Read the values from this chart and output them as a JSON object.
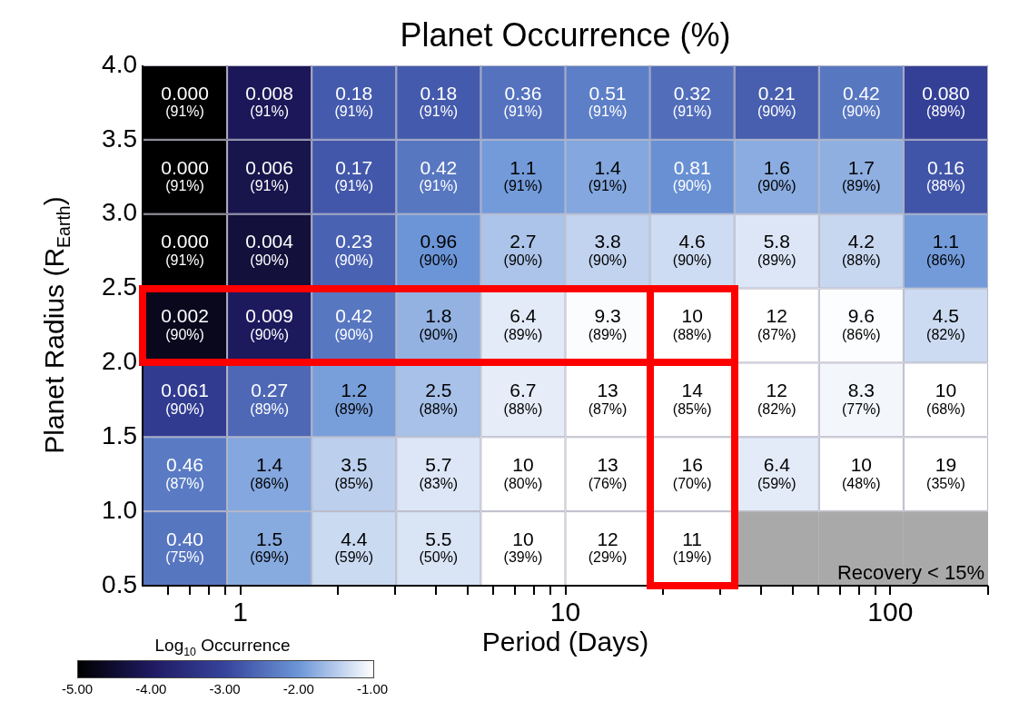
{
  "chart_data": {
    "type": "heatmap",
    "title": "Planet Occurrence (%)",
    "xlabel": "Period (Days)",
    "ylabel": "Planet Radius (R$_{Earth}$)",
    "clabel": "Log$_{10}$ Occurrence",
    "log": "x",
    "xlim": [
      0.5,
      200
    ],
    "xticks": [
      {
        "value": 0.6,
        "label": null
      },
      {
        "value": 0.7,
        "label": null
      },
      {
        "value": 0.8,
        "label": null
      },
      {
        "value": 0.9,
        "label": null
      },
      1,
      {
        "value": 2,
        "label": null
      },
      {
        "value": 3,
        "label": null
      },
      {
        "value": 4,
        "label": null
      },
      {
        "value": 5,
        "label": null
      },
      {
        "value": 6,
        "label": null
      },
      {
        "value": 7,
        "label": null
      },
      {
        "value": 8,
        "label": null
      },
      {
        "value": 9,
        "label": null
      },
      10,
      {
        "value": 20,
        "label": null
      },
      {
        "value": 30,
        "label": null
      },
      {
        "value": 40,
        "label": null
      },
      {
        "value": 50,
        "label": null
      },
      {
        "value": 60,
        "label": null
      },
      {
        "value": 70,
        "label": null
      },
      {
        "value": 80,
        "label": null
      },
      {
        "value": 90,
        "label": null
      },
      100,
      {
        "value": 200,
        "label": null
      }
    ],
    "ylim": [
      0.5,
      4.0
    ],
    "yticks": [
      0.5,
      {
        "value": 1,
        "label": "1.0"
      },
      1.5,
      {
        "value": 2,
        "label": "2.0"
      },
      2.5,
      {
        "value": 3,
        "label": "3.0"
      },
      3.5,
      {
        "value": 4,
        "label": "4.0"
      }
    ],
    "cells": [
      [
        -5,
        -4.1,
        -2.74,
        -2.74,
        -2.44,
        -2.29,
        -2.49,
        -2.68,
        -2.38,
        -3.1
      ],
      [
        -5,
        -4.22,
        -2.77,
        -2.38,
        -1.96,
        -1.85,
        -2.09,
        -1.8,
        -1.77,
        -2.8
      ],
      [
        -5,
        -4.4,
        -2.64,
        -2.02,
        -1.57,
        -1.42,
        -1.34,
        -1.24,
        -1.38,
        -1.96
      ],
      [
        -4.7,
        -4.05,
        -2.38,
        -1.74,
        -1.19,
        -1.03,
        -1,
        -1,
        -1.02,
        -1.35
      ],
      [
        -3.21,
        -2.57,
        -1.92,
        -1.6,
        -1.17,
        -1,
        -1,
        -1,
        -1.08,
        -1
      ],
      [
        -2.34,
        -1.85,
        -1.46,
        -1.24,
        -1,
        -1,
        -1,
        -1.19,
        -1,
        -1
      ],
      [
        -2.4,
        -1.82,
        -1.36,
        -1.26,
        -1,
        -1,
        -1,
        null,
        null,
        null
      ]
    ],
    "cell_labels": [
      [
        "0.000\n(91%)",
        "0.008\n(91%)",
        "0.18\n(91%)",
        "0.18\n(91%)",
        "0.36\n(91%)",
        "0.51\n(91%)",
        "0.32\n(91%)",
        "0.21\n(90%)",
        "0.42\n(90%)",
        "0.080\n(89%)"
      ],
      [
        "0.000\n(91%)",
        "0.006\n(91%)",
        "0.17\n(91%)",
        "0.42\n(91%)",
        "1.1\n(91%)",
        "1.4\n(91%)",
        "0.81\n(90%)",
        "1.6\n(90%)",
        "1.7\n(89%)",
        "0.16\n(88%)"
      ],
      [
        "0.000\n(91%)",
        "0.004\n(90%)",
        "0.23\n(90%)",
        "0.96\n(90%)",
        "2.7\n(90%)",
        "3.8\n(90%)",
        "4.6\n(90%)",
        "5.8\n(89%)",
        "4.2\n(88%)",
        "1.1\n(86%)"
      ],
      [
        "0.002\n(90%)",
        "0.009\n(90%)",
        "0.42\n(90%)",
        "1.8\n(90%)",
        "6.4\n(89%)",
        "9.3\n(89%)",
        "10\n(88%)",
        "12\n(87%)",
        "9.6\n(86%)",
        "4.5\n(82%)"
      ],
      [
        "0.061\n(90%)",
        "0.27\n(89%)",
        "1.2\n(89%)",
        "2.5\n(88%)",
        "6.7\n(88%)",
        "13\n(87%)",
        "14\n(85%)",
        "12\n(82%)",
        "8.3\n(77%)",
        "10\n(68%)"
      ],
      [
        "0.46\n(87%)",
        "1.4\n(86%)",
        "3.5\n(85%)",
        "5.7\n(83%)",
        "10\n(80%)",
        "13\n(76%)",
        "16\n(70%)",
        "6.4\n(59%)",
        "10\n(48%)",
        "19\n(35%)"
      ],
      [
        "0.40\n(75%)",
        "1.5\n(69%)",
        "4.4\n(59%)",
        "5.5\n(50%)",
        "10\n(39%)",
        "12\n(29%)",
        "11\n(19%)",
        null,
        null,
        null
      ]
    ],
    "clim": [
      -5,
      -1
    ],
    "cticks": [
      {
        "value": -5,
        "label": "-5.00"
      },
      {
        "value": -4,
        "label": "-4.00"
      },
      {
        "value": -3,
        "label": "-3.00"
      },
      {
        "value": -2,
        "label": "-2.00"
      },
      {
        "value": -1,
        "label": "-1.00"
      }
    ],
    "colors": [
      "#000000",
      "#1f1a62",
      "#36449c",
      "#6d97d8",
      "#ffffff"
    ],
    "annotations": [
      "Recovery < 15%"
    ]
  }
}
